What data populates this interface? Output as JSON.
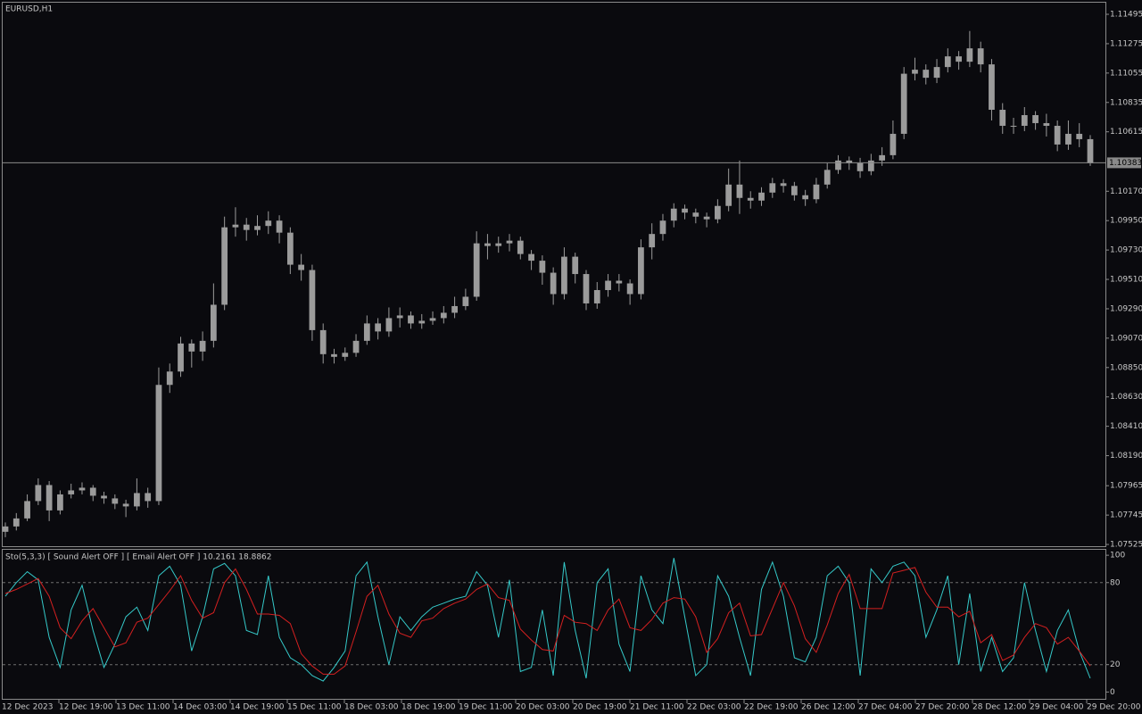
{
  "chart_data": [
    {
      "type": "candlestick",
      "title": "EURUSD,H1",
      "color": "#9b9b9b",
      "open": [
        1.0762,
        1.0766,
        1.0772,
        1.0785,
        1.0797,
        1.0778,
        1.079,
        1.0793,
        1.0795,
        1.0789,
        1.0787,
        1.0783,
        1.0781,
        1.0791,
        1.0785,
        1.0872,
        1.0882,
        1.0903,
        1.0897,
        1.0905,
        1.0932,
        1.099,
        1.0992,
        1.0988,
        1.0991,
        1.0995,
        1.0986,
        1.0962,
        1.0958,
        1.0913,
        1.0895,
        1.0893,
        1.0896,
        1.0905,
        1.0918,
        1.0912,
        1.0922,
        1.0924,
        1.0918,
        1.092,
        1.0922,
        1.0926,
        1.0931,
        1.0938,
        1.0978,
        1.0976,
        1.0978,
        1.098,
        1.097,
        1.0965,
        1.0956,
        1.094,
        1.0968,
        1.0955,
        1.0933,
        1.0943,
        1.095,
        1.0948,
        1.094,
        1.0975,
        1.0985,
        1.0995,
        1.1004,
        1.1001,
        1.0998,
        1.0996,
        1.1006,
        1.1022,
        1.1012,
        1.101,
        1.1016,
        1.1023,
        1.1021,
        1.1014,
        1.1011,
        1.1022,
        1.1033,
        1.104,
        1.1038,
        1.1032,
        1.104,
        1.1044,
        1.106,
        1.1105,
        1.1108,
        1.1102,
        1.111,
        1.1118,
        1.1114,
        1.1124,
        1.1112,
        1.1078,
        1.1066,
        1.1066,
        1.1074,
        1.1068,
        1.1066,
        1.1052,
        1.106,
        1.1056
      ],
      "high": [
        1.0769,
        1.0776,
        1.079,
        1.0802,
        1.08,
        1.0793,
        1.0798,
        1.0799,
        1.0797,
        1.0792,
        1.079,
        1.0786,
        1.0802,
        1.0795,
        1.0885,
        1.0888,
        1.0908,
        1.0906,
        1.0912,
        1.0948,
        1.0998,
        1.1005,
        1.0997,
        1.0999,
        1.1002,
        1.0999,
        1.099,
        1.097,
        1.0962,
        1.0918,
        1.0899,
        1.09,
        1.091,
        1.0924,
        1.0922,
        1.093,
        1.093,
        1.0927,
        1.0925,
        1.0927,
        1.0931,
        1.0938,
        1.0944,
        1.0987,
        1.0985,
        1.0983,
        1.0985,
        1.0983,
        1.0973,
        1.0969,
        1.096,
        1.0975,
        1.0971,
        1.0958,
        1.0949,
        1.0955,
        1.0955,
        1.0951,
        1.0981,
        1.0993,
        1.1,
        1.1008,
        1.1007,
        1.1004,
        1.1001,
        1.1011,
        1.1034,
        1.104,
        1.1017,
        1.102,
        1.1027,
        1.1026,
        1.1024,
        1.1018,
        1.1027,
        1.1038,
        1.1044,
        1.1043,
        1.1042,
        1.1045,
        1.105,
        1.107,
        1.111,
        1.1117,
        1.1112,
        1.1116,
        1.1124,
        1.1122,
        1.1137,
        1.1129,
        1.1116,
        1.1083,
        1.1072,
        1.108,
        1.1077,
        1.1075,
        1.107,
        1.107,
        1.1068,
        1.1059
      ],
      "low": [
        1.0758,
        1.0763,
        1.077,
        1.0782,
        1.077,
        1.0775,
        1.0787,
        1.079,
        1.0785,
        1.0783,
        1.0779,
        1.0773,
        1.0778,
        1.078,
        1.0782,
        1.0866,
        1.0878,
        1.0885,
        1.089,
        1.09,
        1.0928,
        1.0983,
        1.098,
        1.0984,
        1.0985,
        1.0978,
        1.0955,
        1.095,
        1.0905,
        1.0888,
        1.0888,
        1.089,
        1.0893,
        1.0902,
        1.0906,
        1.0908,
        1.0915,
        1.0914,
        1.0914,
        1.0917,
        1.0918,
        1.0922,
        1.0928,
        1.0935,
        1.0966,
        1.0971,
        1.0972,
        1.0966,
        1.0958,
        1.0947,
        1.0932,
        1.0936,
        1.0948,
        1.0928,
        1.0929,
        1.0938,
        1.0942,
        1.0932,
        1.0936,
        1.0966,
        1.098,
        1.099,
        1.0996,
        1.0993,
        1.099,
        1.0993,
        1.1002,
        1.1,
        1.1004,
        1.1006,
        1.1012,
        1.1016,
        1.101,
        1.1006,
        1.1008,
        1.1019,
        1.103,
        1.1033,
        1.1027,
        1.1029,
        1.1036,
        1.1041,
        1.1056,
        1.11,
        1.1097,
        1.1098,
        1.1106,
        1.1108,
        1.111,
        1.1106,
        1.107,
        1.106,
        1.106,
        1.1062,
        1.1063,
        1.1058,
        1.1047,
        1.1048,
        1.105,
        1.1036
      ],
      "close": [
        1.0766,
        1.0772,
        1.0785,
        1.0797,
        1.0778,
        1.079,
        1.0793,
        1.0795,
        1.0789,
        1.0787,
        1.0783,
        1.0781,
        1.0791,
        1.0785,
        1.0872,
        1.0882,
        1.0903,
        1.0897,
        1.0905,
        1.0932,
        1.099,
        1.0992,
        1.0988,
        1.0991,
        1.0995,
        1.0986,
        1.0962,
        1.0958,
        1.0913,
        1.0895,
        1.0893,
        1.0896,
        1.0905,
        1.0918,
        1.0912,
        1.0922,
        1.0924,
        1.0918,
        1.092,
        1.0922,
        1.0926,
        1.0931,
        1.0938,
        1.0978,
        1.0976,
        1.0978,
        1.098,
        1.097,
        1.0965,
        1.0956,
        1.094,
        1.0968,
        1.0955,
        1.0933,
        1.0943,
        1.095,
        1.0948,
        1.094,
        1.0975,
        1.0985,
        1.0995,
        1.1004,
        1.1001,
        1.0998,
        1.0996,
        1.1006,
        1.1022,
        1.1012,
        1.101,
        1.1016,
        1.1023,
        1.1021,
        1.1014,
        1.1011,
        1.1022,
        1.1033,
        1.104,
        1.1038,
        1.1032,
        1.104,
        1.1044,
        1.106,
        1.1105,
        1.1108,
        1.1102,
        1.111,
        1.1118,
        1.1114,
        1.1124,
        1.1112,
        1.1078,
        1.1066,
        1.1066,
        1.1074,
        1.1068,
        1.1066,
        1.1052,
        1.106,
        1.1056,
        1.1038
      ],
      "last_price": 1.10383,
      "ylim": [
        1.07512,
        1.11582
      ],
      "yticks": [
        1.11495,
        1.11275,
        1.11055,
        1.10835,
        1.10615,
        {
          "value": 1.1017,
          "label": "1.10170"
        },
        {
          "value": 1.0995,
          "label": "1.09950"
        },
        {
          "value": 1.0973,
          "label": "1.09730"
        },
        {
          "value": 1.0951,
          "label": "1.09510"
        },
        {
          "value": 1.0929,
          "label": "1.09290"
        },
        {
          "value": 1.0907,
          "label": "1.09070"
        },
        {
          "value": 1.0885,
          "label": "1.08850"
        },
        {
          "value": 1.0863,
          "label": "1.08630"
        },
        {
          "value": 1.0841,
          "label": "1.08410"
        },
        {
          "value": 1.0819,
          "label": "1.08190"
        },
        1.07965,
        1.07745,
        1.07525
      ],
      "grid": false
    },
    {
      "type": "line",
      "title": "Sto(5,3,3) [ Sound Alert OFF ] [ Email Alert OFF ] 10.2161 18.8862",
      "series": [
        {
          "color": "#35c9c9",
          "values": [
            70,
            80,
            88,
            82,
            40,
            18,
            60,
            78,
            45,
            18,
            35,
            55,
            62,
            45,
            85,
            92,
            78,
            30,
            55,
            90,
            94,
            85,
            45,
            42,
            85,
            40,
            25,
            20,
            12,
            8,
            18,
            30,
            85,
            95,
            55,
            20,
            55,
            45,
            55,
            62,
            65,
            68,
            70,
            88,
            78,
            40,
            82,
            15,
            18,
            60,
            12,
            95,
            45,
            10,
            80,
            90,
            35,
            15,
            85,
            60,
            50,
            98,
            55,
            12,
            20,
            85,
            70,
            40,
            12,
            75,
            95,
            70,
            25,
            22,
            40,
            85,
            92,
            80,
            12,
            90,
            80,
            92,
            95,
            85,
            40,
            60,
            85,
            20,
            72,
            15,
            40,
            15,
            25,
            80,
            45,
            15,
            45,
            60,
            30,
            10
          ]
        },
        {
          "color": "#d42020",
          "values": [
            72,
            75,
            79,
            83,
            70,
            47,
            39,
            52,
            61,
            47,
            33,
            36,
            51,
            54,
            64,
            74,
            85,
            67,
            54,
            58,
            80,
            90,
            75,
            57,
            57,
            56,
            50,
            28,
            19,
            13,
            13,
            19,
            44,
            70,
            78,
            57,
            43,
            40,
            52,
            54,
            61,
            65,
            68,
            75,
            79,
            69,
            67,
            46,
            38,
            31,
            30,
            56,
            51,
            50,
            45,
            60,
            68,
            47,
            45,
            53,
            65,
            69,
            68,
            55,
            29,
            39,
            58,
            65,
            41,
            42,
            61,
            80,
            63,
            39,
            29,
            49,
            72,
            86,
            61,
            61,
            61,
            87,
            89,
            91,
            73,
            62,
            62,
            55,
            59,
            36,
            42,
            23,
            27,
            40,
            50,
            47,
            35,
            40,
            30,
            19
          ]
        }
      ],
      "levels": [
        20,
        80
      ],
      "ylim": [
        -5,
        104
      ],
      "yticks": [
        100,
        80,
        20,
        0
      ]
    }
  ],
  "time_axis": [
    "12 Dec 2023",
    "12 Dec 19:00",
    "13 Dec 11:00",
    "14 Dec 03:00",
    "14 Dec 19:00",
    "15 Dec 11:00",
    "18 Dec 03:00",
    "18 Dec 19:00",
    "19 Dec 11:00",
    "20 Dec 03:00",
    "20 Dec 19:00",
    "21 Dec 11:00",
    "22 Dec 03:00",
    "22 Dec 19:00",
    "26 Dec 12:00",
    "27 Dec 04:00",
    "27 Dec 20:00",
    "28 Dec 12:00",
    "29 Dec 04:00",
    "29 Dec 20:00"
  ]
}
